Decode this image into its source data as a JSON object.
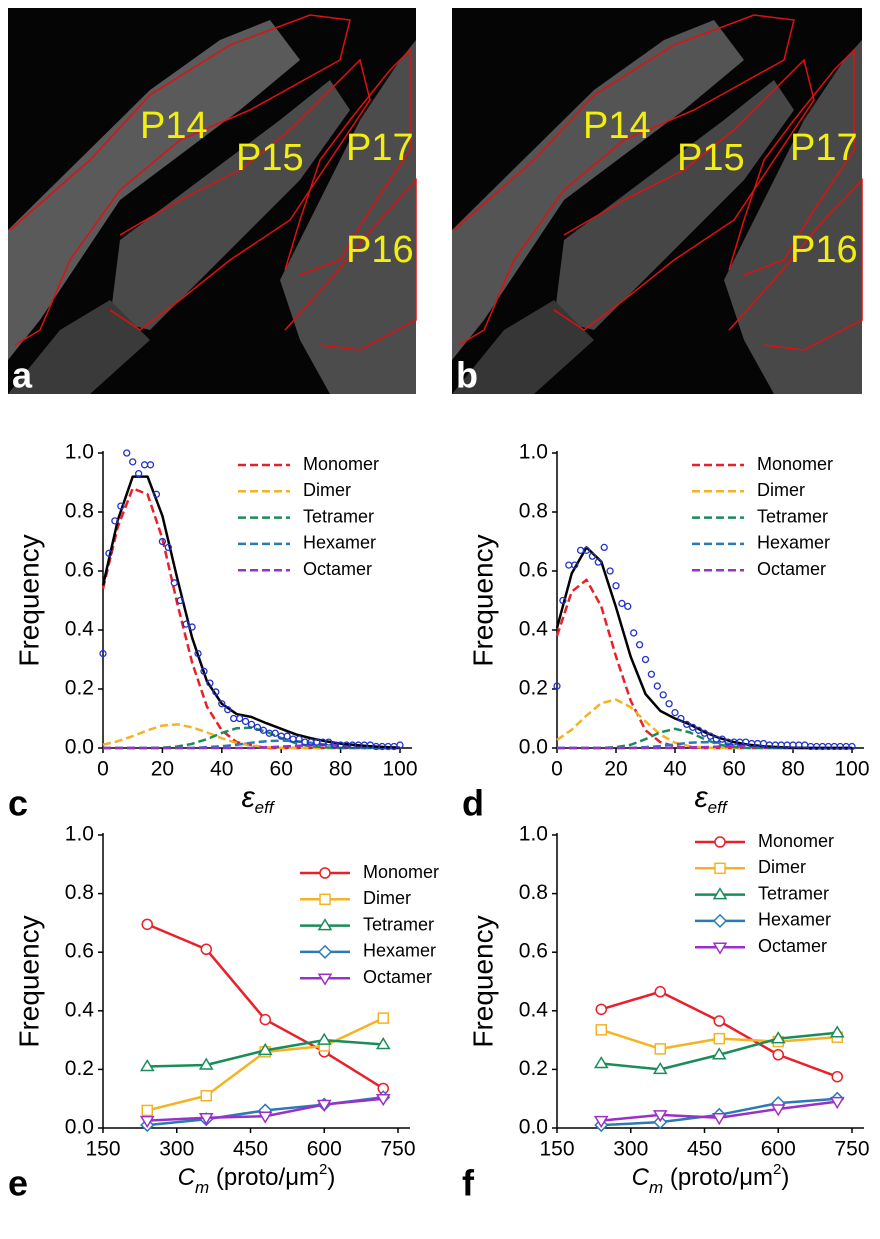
{
  "images": [
    {
      "panel": "a",
      "labels": [
        "P14",
        "P15",
        "P17",
        "P16"
      ]
    },
    {
      "panel": "b",
      "labels": [
        "P14",
        "P15",
        "P17",
        "P16"
      ]
    }
  ],
  "chart_data": [
    {
      "type": "line",
      "panel": "c",
      "y_label": "Frequency",
      "x_label": [
        {
          "text": "ε",
          "style": "italic"
        },
        {
          "text": "eff",
          "style": "italic-sub"
        }
      ],
      "xlim": [
        0,
        100
      ],
      "xticks": [
        0,
        20,
        40,
        60,
        80,
        100
      ],
      "ylim": [
        0,
        1
      ],
      "yticks": [
        {
          "value": 0,
          "label": "0.0"
        },
        0.2,
        0.4,
        0.6,
        0.8,
        {
          "value": 1,
          "label": "1.0"
        }
      ],
      "legend": "top-right",
      "x": [
        0,
        5,
        10,
        15,
        20,
        25,
        30,
        35,
        40,
        45,
        50,
        55,
        60,
        65,
        70,
        75,
        80,
        85,
        90,
        95,
        100
      ],
      "series": [
        {
          "name": "Monomer",
          "color": "#e8202a",
          "dash": true,
          "values": [
            0.54,
            0.75,
            0.88,
            0.86,
            0.71,
            0.49,
            0.29,
            0.14,
            0.06,
            0.02,
            0.01,
            0,
            0,
            0,
            0,
            0,
            0,
            0,
            0,
            0,
            0
          ]
        },
        {
          "name": "Dimer",
          "color": "#f5b324",
          "dash": true,
          "values": [
            0.011,
            0.023,
            0.04,
            0.06,
            0.076,
            0.08,
            0.07,
            0.053,
            0.033,
            0.017,
            0.008,
            0.003,
            0.001,
            0,
            0,
            0,
            0,
            0,
            0,
            0,
            0
          ]
        },
        {
          "name": "Tetramer",
          "color": "#1a8c5a",
          "dash": true,
          "values": [
            0,
            0,
            0,
            0,
            0.001,
            0.005,
            0.014,
            0.03,
            0.051,
            0.067,
            0.069,
            0.055,
            0.034,
            0.016,
            0.006,
            0.002,
            0,
            0,
            0,
            0,
            0
          ]
        },
        {
          "name": "Hexamer",
          "color": "#2a7ab5",
          "dash": true,
          "values": [
            0,
            0,
            0,
            0,
            0,
            0,
            0,
            0.003,
            0.006,
            0.011,
            0.018,
            0.023,
            0.025,
            0.023,
            0.018,
            0.011,
            0.006,
            0.003,
            0.001,
            0,
            0
          ]
        },
        {
          "name": "Octamer",
          "color": "#9b30c8",
          "dash": true,
          "values": [
            0,
            0,
            0,
            0,
            0,
            0,
            0,
            0,
            0,
            0,
            0,
            0.0025,
            0.0046,
            0.007,
            0.009,
            0.01,
            0.009,
            0.007,
            0.0046,
            0.0025,
            0.001
          ]
        },
        {
          "color": "#000000",
          "values": [
            0.551,
            0.773,
            0.92,
            0.92,
            0.787,
            0.575,
            0.374,
            0.226,
            0.15,
            0.115,
            0.105,
            0.084,
            0.065,
            0.046,
            0.033,
            0.023,
            0.015,
            0.01,
            0.006,
            0.003,
            0.001
          ]
        },
        {
          "type": "scatter",
          "color": "#2233cc",
          "x": [
            0,
            2,
            4,
            6,
            8,
            10,
            12,
            14,
            16,
            18,
            20,
            22,
            24,
            26,
            28,
            30,
            32,
            34,
            36,
            38,
            40,
            42,
            44,
            46,
            48,
            50,
            52,
            54,
            56,
            58,
            60,
            62,
            64,
            66,
            68,
            70,
            72,
            74,
            76,
            78,
            80,
            82,
            84,
            86,
            88,
            90,
            92,
            94,
            96,
            98,
            100
          ],
          "values": [
            0.32,
            0.66,
            0.77,
            0.82,
            1.0,
            0.97,
            0.93,
            0.96,
            0.96,
            0.86,
            0.7,
            0.68,
            0.56,
            0.5,
            0.42,
            0.41,
            0.32,
            0.26,
            0.22,
            0.19,
            0.15,
            0.13,
            0.1,
            0.1,
            0.09,
            0.08,
            0.07,
            0.06,
            0.05,
            0.05,
            0.04,
            0.04,
            0.03,
            0.03,
            0.02,
            0.02,
            0.02,
            0.02,
            0.02,
            0.01,
            0.01,
            0.01,
            0.01,
            0.01,
            0.01,
            0.01,
            0.005,
            0.005,
            0.005,
            0.005,
            0.01
          ]
        }
      ]
    },
    {
      "type": "line",
      "panel": "d",
      "y_label": "Frequency",
      "x_label": [
        {
          "text": "ε",
          "style": "italic"
        },
        {
          "text": "eff",
          "style": "italic-sub"
        }
      ],
      "xlim": [
        0,
        100
      ],
      "xticks": [
        0,
        20,
        40,
        60,
        80,
        100
      ],
      "ylim": [
        0,
        1
      ],
      "yticks": [
        {
          "value": 0,
          "label": "0.0"
        },
        0.2,
        0.4,
        0.6,
        0.8,
        {
          "value": 1,
          "label": "1.0"
        }
      ],
      "legend": "top-right",
      "x": [
        0,
        5,
        10,
        15,
        20,
        25,
        30,
        35,
        40,
        45,
        50,
        55,
        60,
        65,
        70,
        75,
        80,
        85,
        90,
        95,
        100
      ],
      "series": [
        {
          "name": "Monomer",
          "color": "#e8202a",
          "dash": true,
          "values": [
            0.38,
            0.53,
            0.57,
            0.48,
            0.31,
            0.16,
            0.06,
            0.02,
            0.005,
            0.001,
            0,
            0,
            0,
            0,
            0,
            0,
            0,
            0,
            0,
            0,
            0
          ]
        },
        {
          "name": "Dimer",
          "color": "#f5b324",
          "dash": true,
          "values": [
            0.027,
            0.062,
            0.11,
            0.152,
            0.164,
            0.138,
            0.09,
            0.046,
            0.018,
            0.006,
            0.001,
            0,
            0,
            0,
            0,
            0,
            0,
            0,
            0,
            0,
            0
          ]
        },
        {
          "name": "Tetramer",
          "color": "#1a8c5a",
          "dash": true,
          "values": [
            0,
            0,
            0,
            0,
            0.003,
            0.011,
            0.03,
            0.053,
            0.065,
            0.053,
            0.03,
            0.011,
            0.003,
            0,
            0,
            0,
            0,
            0,
            0,
            0,
            0
          ]
        },
        {
          "name": "Hexamer",
          "color": "#2a7ab5",
          "dash": true,
          "values": [
            0,
            0,
            0,
            0,
            0,
            0,
            0.003,
            0.0065,
            0.012,
            0.018,
            0.02,
            0.018,
            0.012,
            0.0065,
            0.003,
            0.001,
            0,
            0,
            0,
            0,
            0
          ]
        },
        {
          "name": "Octamer",
          "color": "#9b30c8",
          "dash": true,
          "values": [
            0,
            0,
            0,
            0,
            0,
            0,
            0,
            0,
            0,
            0.002,
            0.003,
            0.0045,
            0.005,
            0.0045,
            0.003,
            0.002,
            0.001,
            0,
            0,
            0,
            0
          ]
        },
        {
          "color": "#000000",
          "values": [
            0.407,
            0.592,
            0.68,
            0.632,
            0.477,
            0.309,
            0.183,
            0.126,
            0.1,
            0.08,
            0.054,
            0.034,
            0.02,
            0.011,
            0.006,
            0.003,
            0.001,
            0,
            0,
            0,
            0
          ]
        },
        {
          "type": "scatter",
          "color": "#2233cc",
          "x": [
            0,
            2,
            4,
            6,
            8,
            10,
            12,
            14,
            16,
            18,
            20,
            22,
            24,
            26,
            28,
            30,
            32,
            34,
            36,
            38,
            40,
            42,
            44,
            46,
            48,
            50,
            52,
            54,
            56,
            58,
            60,
            62,
            64,
            66,
            68,
            70,
            72,
            74,
            76,
            78,
            80,
            82,
            84,
            86,
            88,
            90,
            92,
            94,
            96,
            98,
            100
          ],
          "values": [
            0.21,
            0.5,
            0.62,
            0.62,
            0.67,
            0.67,
            0.65,
            0.63,
            0.68,
            0.6,
            0.55,
            0.49,
            0.48,
            0.39,
            0.35,
            0.3,
            0.25,
            0.21,
            0.18,
            0.15,
            0.12,
            0.1,
            0.08,
            0.07,
            0.06,
            0.05,
            0.04,
            0.03,
            0.03,
            0.02,
            0.02,
            0.02,
            0.02,
            0.015,
            0.015,
            0.015,
            0.01,
            0.01,
            0.01,
            0.01,
            0.01,
            0.01,
            0.01,
            0.005,
            0.005,
            0.005,
            0.005,
            0.005,
            0.005,
            0.005,
            0.005
          ]
        }
      ]
    },
    {
      "type": "line",
      "panel": "e",
      "y_label": "Frequency",
      "x_label": [
        {
          "text": "C",
          "style": "italic"
        },
        {
          "text": "m",
          "style": "italic-sub"
        },
        {
          "text": " (proto/μm",
          "style": "normal"
        },
        {
          "text": "2",
          "style": "sup"
        },
        {
          "text": ")",
          "style": "normal"
        }
      ],
      "xlim": [
        150,
        750
      ],
      "xticks": [
        150,
        300,
        450,
        600,
        750
      ],
      "ylim": [
        0,
        1
      ],
      "yticks": [
        {
          "value": 0,
          "label": "0.0"
        },
        0.2,
        0.4,
        0.6,
        0.8,
        {
          "value": 1,
          "label": "1.0"
        }
      ],
      "legend": "top-right",
      "x": [
        240,
        360,
        480,
        600,
        720
      ],
      "series": [
        {
          "name": "Monomer",
          "color": "#e8202a",
          "marker": "circle",
          "values": [
            0.695,
            0.61,
            0.37,
            0.26,
            0.135
          ]
        },
        {
          "name": "Dimer",
          "color": "#f5b324",
          "marker": "square",
          "values": [
            0.06,
            0.11,
            0.26,
            0.28,
            0.375
          ]
        },
        {
          "name": "Tetramer",
          "color": "#1a8c5a",
          "marker": "triangle-up",
          "values": [
            0.21,
            0.215,
            0.265,
            0.3,
            0.285
          ]
        },
        {
          "name": "Hexamer",
          "color": "#2a7ab5",
          "marker": "diamond",
          "values": [
            0.01,
            0.03,
            0.06,
            0.08,
            0.105
          ]
        },
        {
          "name": "Octamer",
          "color": "#9b30c8",
          "marker": "triangle-down",
          "values": [
            0.025,
            0.035,
            0.04,
            0.08,
            0.1
          ]
        }
      ]
    },
    {
      "type": "line",
      "panel": "f",
      "y_label": "Frequency",
      "x_label": [
        {
          "text": "C",
          "style": "italic"
        },
        {
          "text": "m",
          "style": "italic-sub"
        },
        {
          "text": " (proto/μm",
          "style": "normal"
        },
        {
          "text": "2",
          "style": "sup"
        },
        {
          "text": ")",
          "style": "normal"
        }
      ],
      "xlim": [
        150,
        750
      ],
      "xticks": [
        150,
        300,
        450,
        600,
        750
      ],
      "ylim": [
        0,
        1
      ],
      "yticks": [
        {
          "value": 0,
          "label": "0.0"
        },
        0.2,
        0.4,
        0.6,
        0.8,
        {
          "value": 1,
          "label": "1.0"
        }
      ],
      "legend": "top-right",
      "x": [
        240,
        360,
        480,
        600,
        720
      ],
      "series": [
        {
          "name": "Monomer",
          "color": "#e8202a",
          "marker": "circle",
          "values": [
            0.405,
            0.465,
            0.365,
            0.25,
            0.175
          ]
        },
        {
          "name": "Dimer",
          "color": "#f5b324",
          "marker": "square",
          "values": [
            0.335,
            0.27,
            0.305,
            0.295,
            0.31
          ]
        },
        {
          "name": "Tetramer",
          "color": "#1a8c5a",
          "marker": "triangle-up",
          "values": [
            0.22,
            0.2,
            0.25,
            0.305,
            0.325
          ]
        },
        {
          "name": "Hexamer",
          "color": "#2a7ab5",
          "marker": "diamond",
          "values": [
            0.01,
            0.02,
            0.045,
            0.085,
            0.1
          ]
        },
        {
          "name": "Octamer",
          "color": "#9b30c8",
          "marker": "triangle-down",
          "values": [
            0.025,
            0.045,
            0.035,
            0.065,
            0.09
          ]
        }
      ]
    }
  ]
}
